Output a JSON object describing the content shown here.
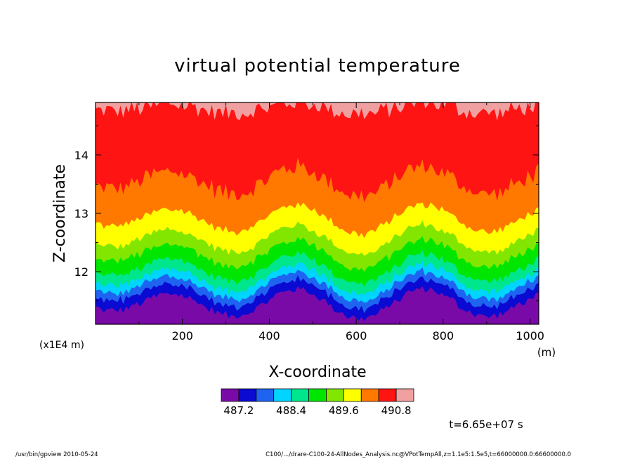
{
  "chart_data": {
    "type": "heatmap",
    "title": "virtual potential temperature",
    "xlabel": "X-coordinate",
    "ylabel": "Z-coordinate",
    "x_unit": "(m)",
    "y_scale_note": "(x1E4 m)",
    "xlim": [
      0,
      1020
    ],
    "ylim": [
      11.1,
      14.9
    ],
    "x_ticks": [
      200,
      400,
      600,
      800,
      1000
    ],
    "x_tick_labels": [
      "200",
      "400",
      "600",
      "800",
      "1000"
    ],
    "y_ticks": [
      12,
      13,
      14
    ],
    "y_tick_labels": [
      "12",
      "13",
      "14"
    ],
    "colorbar": {
      "levels": [
        486.8,
        487.2,
        487.6,
        488.0,
        488.4,
        488.8,
        489.2,
        489.6,
        490.0,
        490.4,
        490.8,
        491.2
      ],
      "colors": [
        "#7a0aa8",
        "#0a0ad2",
        "#1f64f0",
        "#00d4ff",
        "#00e68c",
        "#00e600",
        "#82e600",
        "#ffff00",
        "#ff7800",
        "#ff1414",
        "#f0a0a0"
      ],
      "tick_labels": [
        "487.2",
        "488.4",
        "489.6",
        "490.8"
      ]
    },
    "contours_bottom_to_top": [
      {
        "color": "#7a0aa8",
        "mean_z": 11.1
      },
      {
        "color": "#0a0ad2",
        "mean_z": 11.45
      },
      {
        "color": "#1f64f0",
        "mean_z": 11.62
      },
      {
        "color": "#00d4ff",
        "mean_z": 11.75
      },
      {
        "color": "#00e68c",
        "mean_z": 11.88
      },
      {
        "color": "#00e600",
        "mean_z": 12.05
      },
      {
        "color": "#82e600",
        "mean_z": 12.3
      },
      {
        "color": "#ffff00",
        "mean_z": 12.55
      },
      {
        "color": "#ff7800",
        "mean_z": 12.9
      },
      {
        "color": "#ff1414",
        "mean_z": 13.55
      },
      {
        "color": "#f0a0a0",
        "mean_z": 14.8
      }
    ],
    "time_label": "t=6.65e+07 s",
    "grid": false
  },
  "footer": {
    "left": "/usr/bin/gpview   2010-05-24",
    "right": "C100/.../drare-C100-24-AllNodes_Analysis.nc@VPotTempAll,z=1.1e5:1.5e5,t=66000000.0:66600000.0"
  }
}
